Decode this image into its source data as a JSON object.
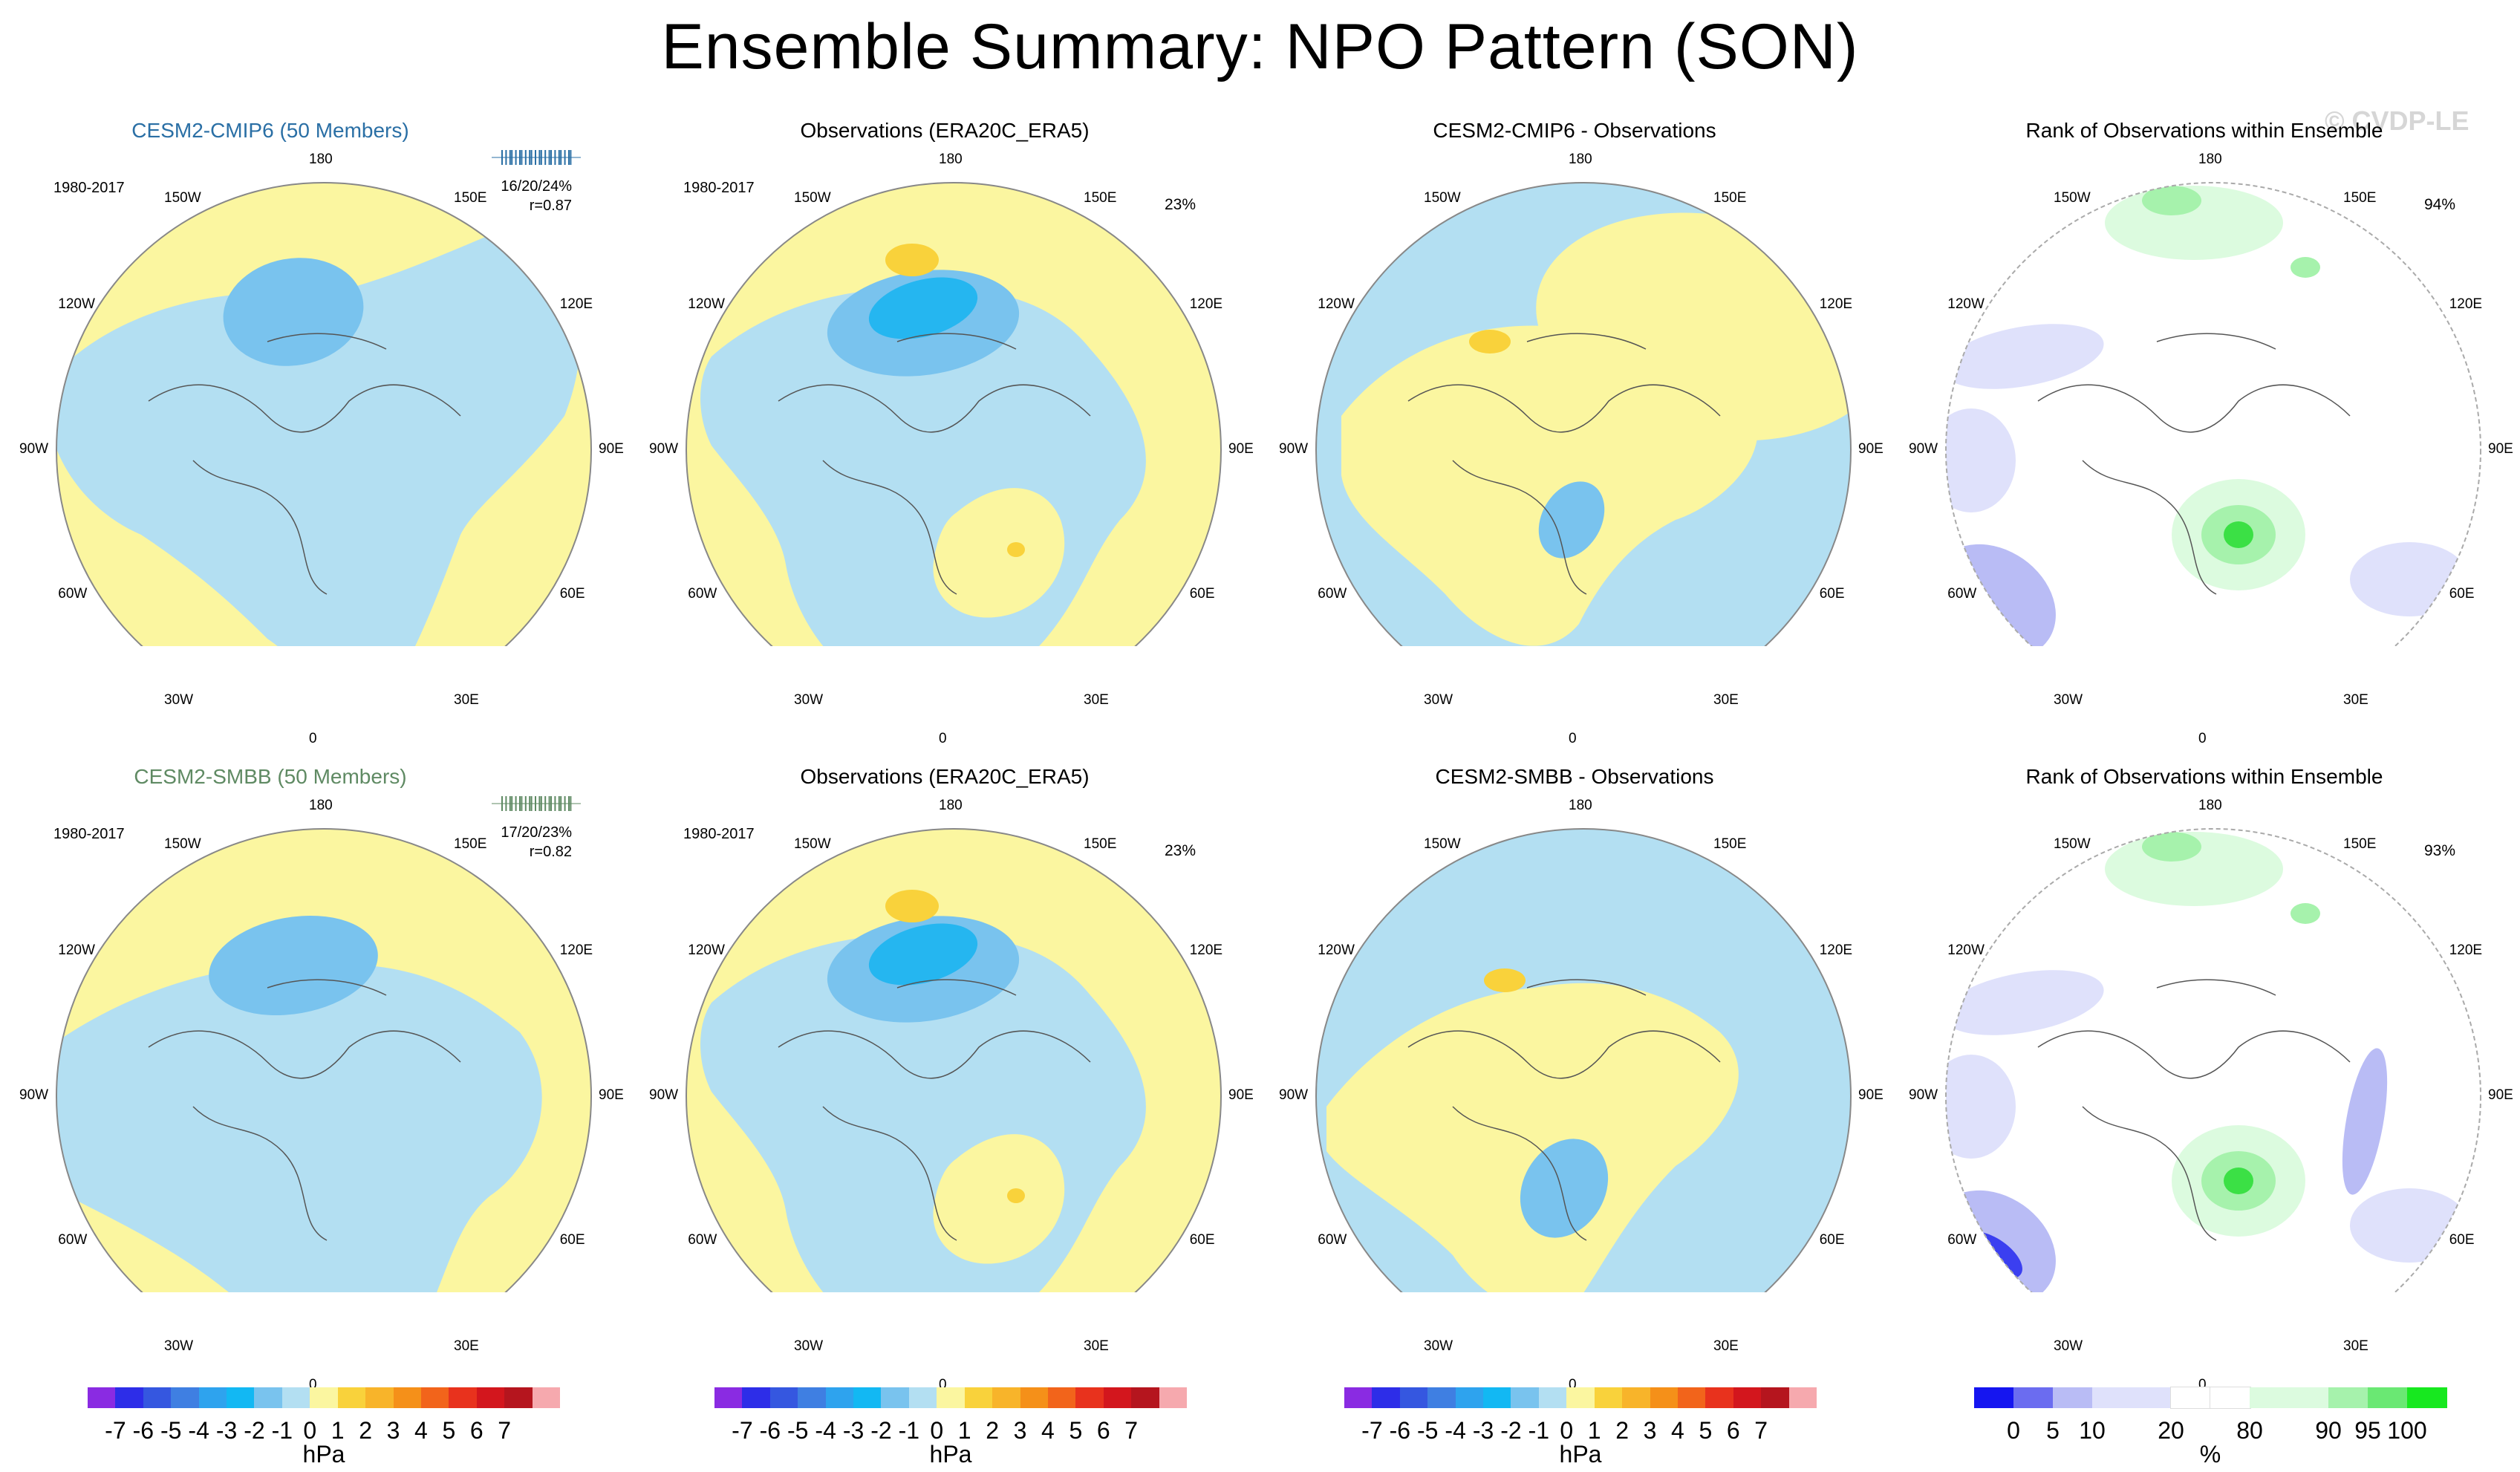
{
  "title": "Ensemble Summary: NPO Pattern (SON)",
  "watermark": "© CVDP-LE",
  "colors": {
    "neg1": "#b3dff2",
    "neg2": "#79c3ee",
    "neg3": "#25b6f0",
    "neg4": "#6aa4ef",
    "pos1": "#fbf6a0",
    "pos2": "#f9d23b",
    "rank_lo": "#dfe1fb",
    "rank_lo2": "#b9bcf5",
    "rank_lo3": "#3b3ff0",
    "rank_hi": "#dcfbdf",
    "rank_hi2": "#a6f2ac",
    "rank_hi3": "#3be045",
    "cmip6": "#2a6fa5",
    "smbb": "#5f8a63"
  },
  "rows": [
    {
      "panels": [
        {
          "title": "CESM2-CMIP6 (50 Members)",
          "type": "model",
          "years": "1980-2017",
          "stats1": "16/20/24%",
          "stats2": "r=0.87"
        },
        {
          "title": "Observations (ERA20C_ERA5)",
          "type": "obs",
          "years": "1980-2017",
          "pct": "23%"
        },
        {
          "title": "CESM2-CMIP6 - Observations",
          "type": "diff"
        },
        {
          "title": "Rank of Observations within Ensemble",
          "type": "rank",
          "pct": "94%"
        }
      ]
    },
    {
      "panels": [
        {
          "title": "CESM2-SMBB (50 Members)",
          "type": "model",
          "years": "1980-2017",
          "stats1": "17/20/23%",
          "stats2": "r=0.82"
        },
        {
          "title": "Observations (ERA20C_ERA5)",
          "type": "obs",
          "years": "1980-2017",
          "pct": "23%"
        },
        {
          "title": "CESM2-SMBB - Observations",
          "type": "diff"
        },
        {
          "title": "Rank of Observations within Ensemble",
          "type": "rank",
          "pct": "93%"
        }
      ]
    }
  ],
  "lon_labels": [
    "180",
    "150E",
    "120E",
    "90E",
    "60E",
    "30E",
    "0",
    "30W",
    "60W",
    "90W",
    "120W",
    "150W"
  ],
  "hpa_bar": {
    "colors": [
      "#8a2be2",
      "#2d2de8",
      "#3557e0",
      "#3f7fe2",
      "#2ea3ee",
      "#12b8f3",
      "#79c3ee",
      "#b3dff2",
      "#fbf6a0",
      "#f9d23b",
      "#f8b42a",
      "#f59019",
      "#f2641b",
      "#e8321d",
      "#d3161d",
      "#b5151e",
      "#f6a9ae"
    ],
    "ticks": [
      "-7",
      "-6",
      "-5",
      "-4",
      "-3",
      "-2",
      "-1",
      "0",
      "1",
      "2",
      "3",
      "4",
      "5",
      "6",
      "7"
    ],
    "unit": "hPa"
  },
  "pct_bar": {
    "colors": [
      "#1515f0",
      "#6b6cf0",
      "#b9bcf5",
      "#dfe1fb",
      "#dfe1fb",
      "#ffffff",
      "#ffffff",
      "#dcfbdf",
      "#dcfbdf",
      "#a6f2ac",
      "#6ae873",
      "#17e81f"
    ],
    "ticks": [
      "0",
      "5",
      "10",
      "20",
      "80",
      "90",
      "95",
      "100"
    ],
    "unit": "%"
  }
}
